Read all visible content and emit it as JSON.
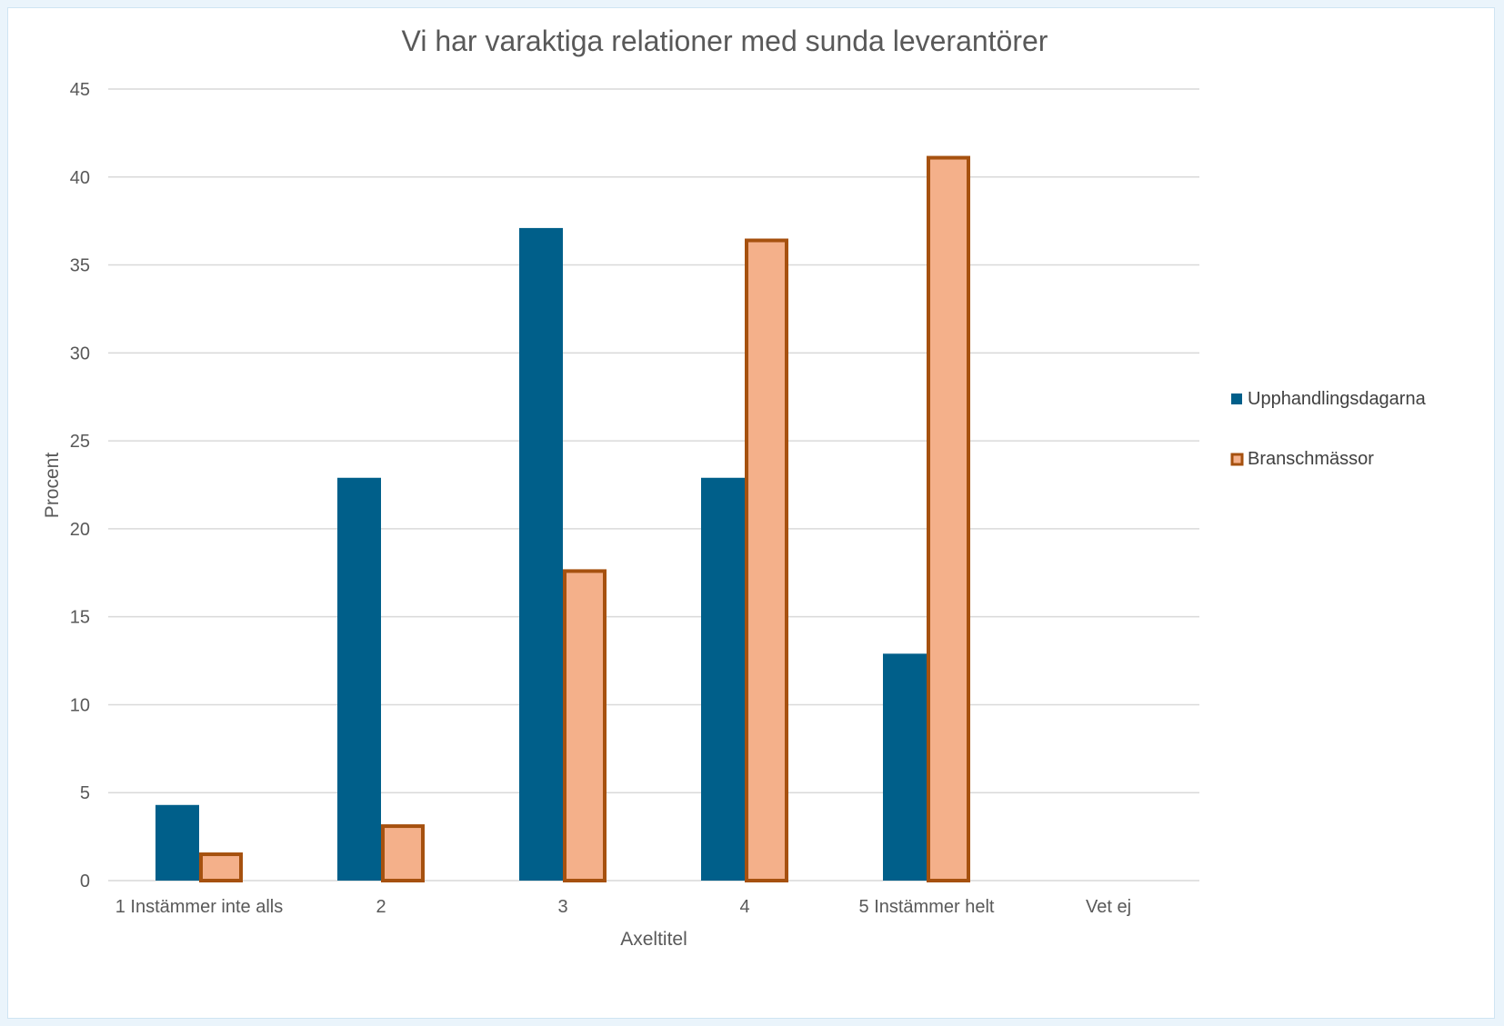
{
  "chart_data": {
    "type": "bar",
    "title": "Vi har varaktiga relationer med sunda leverantörer",
    "xlabel": "Axeltitel",
    "ylabel": "Procent",
    "categories": [
      "1 Instämmer inte alls",
      "2",
      "3",
      "4",
      "5 Instämmer helt",
      "Vet ej"
    ],
    "ylim": [
      0,
      45
    ],
    "yticks": [
      "0",
      "5",
      "10",
      "15",
      "20",
      "25",
      "30",
      "35",
      "40",
      "45"
    ],
    "grid": true,
    "legend_position": "right",
    "series": [
      {
        "name": "Upphandlingsdagarna",
        "values": [
          4.3,
          22.9,
          37.1,
          22.9,
          12.9,
          0
        ],
        "color": "#005f8a"
      },
      {
        "name": "Branschmässor",
        "values": [
          1.6,
          3.2,
          17.7,
          36.5,
          41.2,
          0
        ],
        "color": "#f4b08a",
        "border_color": "#a6510f"
      }
    ]
  }
}
